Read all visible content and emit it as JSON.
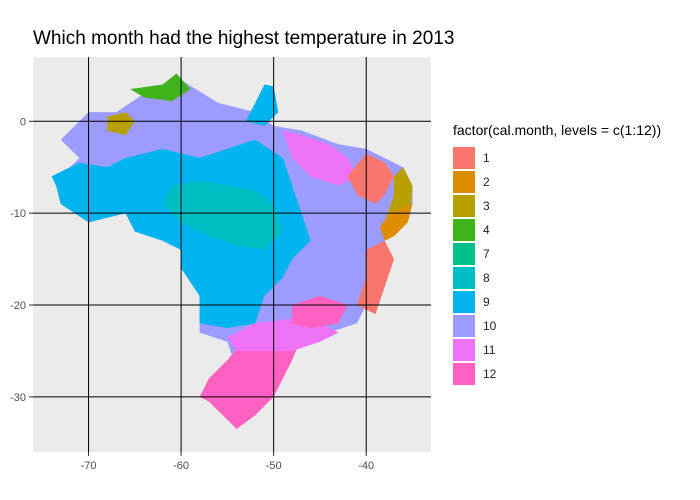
{
  "title": "Which month had the highest temperature in 2013",
  "legend": {
    "title": "factor(cal.month, levels = c(1:12))",
    "items": [
      {
        "label": "1",
        "color": "#F8766D"
      },
      {
        "label": "2",
        "color": "#DE8C00"
      },
      {
        "label": "3",
        "color": "#B79F00"
      },
      {
        "label": "4",
        "color": "#3FB319"
      },
      {
        "label": "7",
        "color": "#00C08B"
      },
      {
        "label": "8",
        "color": "#00BFC4"
      },
      {
        "label": "9",
        "color": "#00B4F0"
      },
      {
        "label": "10",
        "color": "#9C9CFF"
      },
      {
        "label": "11",
        "color": "#EE72F6"
      },
      {
        "label": "12",
        "color": "#FF61C3"
      }
    ]
  },
  "axes": {
    "x": {
      "range": [
        -76,
        -33
      ],
      "ticks": [
        -70,
        -60,
        -50,
        -40
      ],
      "tick_labels": [
        "-70",
        "-60",
        "-50",
        "-40"
      ]
    },
    "y": {
      "range": [
        -36,
        7
      ],
      "ticks": [
        0,
        -10,
        -20,
        -30
      ],
      "tick_labels": [
        "0",
        "-10",
        "-20",
        "-30"
      ]
    }
  },
  "panel_background": "#EBEBEB",
  "grid_color": "#000000",
  "regions": [
    {
      "month": "10",
      "color": "#9C9CFF",
      "points": [
        [
          -73,
          -2
        ],
        [
          -70,
          1
        ],
        [
          -67,
          1
        ],
        [
          -64,
          3
        ],
        [
          -60,
          4.5
        ],
        [
          -56,
          2
        ],
        [
          -52,
          1
        ],
        [
          -50,
          -0.5
        ],
        [
          -47,
          -1
        ],
        [
          -43,
          -2.5
        ],
        [
          -40,
          -3
        ],
        [
          -36,
          -5
        ],
        [
          -35,
          -7
        ],
        [
          -35,
          -9
        ],
        [
          -37,
          -12
        ],
        [
          -39,
          -14
        ],
        [
          -39,
          -17
        ],
        [
          -40,
          -20
        ],
        [
          -41,
          -22
        ],
        [
          -44,
          -23
        ],
        [
          -46,
          -24
        ],
        [
          -49,
          -25
        ],
        [
          -50,
          -28
        ],
        [
          -52,
          -31
        ],
        [
          -54,
          -33
        ],
        [
          -56,
          -31
        ],
        [
          -57,
          -30
        ],
        [
          -57,
          -28
        ],
        [
          -54,
          -27
        ],
        [
          -55,
          -24
        ],
        [
          -58,
          -23
        ],
        [
          -58,
          -19
        ],
        [
          -60,
          -16
        ],
        [
          -60,
          -14
        ],
        [
          -62,
          -13
        ],
        [
          -65,
          -12
        ],
        [
          -66,
          -10
        ],
        [
          -70,
          -11
        ],
        [
          -73,
          -9
        ],
        [
          -73.5,
          -7
        ],
        [
          -72,
          -5
        ],
        [
          -71,
          -4
        ]
      ]
    },
    {
      "month": "9",
      "color": "#00B4F0",
      "points": [
        [
          -74,
          -6
        ],
        [
          -71,
          -4.5
        ],
        [
          -68,
          -5
        ],
        [
          -66,
          -4
        ],
        [
          -62,
          -3
        ],
        [
          -58,
          -4
        ],
        [
          -55,
          -3
        ],
        [
          -52,
          -2
        ],
        [
          -49,
          -4
        ],
        [
          -48,
          -7
        ],
        [
          -47,
          -10
        ],
        [
          -46,
          -13
        ],
        [
          -48,
          -15
        ],
        [
          -49,
          -17
        ],
        [
          -51,
          -19
        ],
        [
          -52,
          -22
        ],
        [
          -55,
          -22.5
        ],
        [
          -58,
          -22
        ],
        [
          -58,
          -19
        ],
        [
          -60,
          -16
        ],
        [
          -60,
          -14
        ],
        [
          -62,
          -13
        ],
        [
          -65,
          -12
        ],
        [
          -66,
          -10
        ],
        [
          -70,
          -11
        ],
        [
          -73,
          -9
        ],
        [
          -73.5,
          -7
        ]
      ]
    },
    {
      "month": "8",
      "color": "#00BFC4",
      "points": [
        [
          -61,
          -7
        ],
        [
          -58,
          -6.5
        ],
        [
          -55,
          -7
        ],
        [
          -52,
          -7.5
        ],
        [
          -50,
          -9
        ],
        [
          -49,
          -12
        ],
        [
          -51,
          -14
        ],
        [
          -54,
          -13.5
        ],
        [
          -57,
          -12.5
        ],
        [
          -60,
          -11
        ],
        [
          -62,
          -9
        ]
      ]
    },
    {
      "month": "11",
      "color": "#EE72F6",
      "points": [
        [
          -49,
          -1
        ],
        [
          -47,
          -1.5
        ],
        [
          -44,
          -2.5
        ],
        [
          -42,
          -4
        ],
        [
          -41,
          -6
        ],
        [
          -43,
          -7
        ],
        [
          -46,
          -6
        ],
        [
          -48,
          -4
        ]
      ]
    },
    {
      "month": "12",
      "color": "#FF61C3",
      "points": [
        [
          -57,
          -28
        ],
        [
          -55,
          -26
        ],
        [
          -53,
          -23.5
        ],
        [
          -50,
          -22.5
        ],
        [
          -47,
          -23.5
        ],
        [
          -48,
          -26
        ],
        [
          -49,
          -28
        ],
        [
          -50,
          -30
        ],
        [
          -52,
          -32
        ],
        [
          -54,
          -33.5
        ],
        [
          -57,
          -30.5
        ],
        [
          -58,
          -30
        ]
      ]
    },
    {
      "month": "11",
      "color": "#EE72F6",
      "points": [
        [
          -55,
          -23.5
        ],
        [
          -52,
          -22
        ],
        [
          -48,
          -21.5
        ],
        [
          -45,
          -22
        ],
        [
          -43,
          -23
        ],
        [
          -45,
          -24
        ],
        [
          -48,
          -25
        ],
        [
          -51,
          -25
        ],
        [
          -54,
          -25
        ]
      ]
    },
    {
      "month": "12",
      "color": "#FF61C3",
      "points": [
        [
          -48,
          -20
        ],
        [
          -45,
          -19
        ],
        [
          -42,
          -20
        ],
        [
          -43,
          -22
        ],
        [
          -46,
          -22.5
        ],
        [
          -48,
          -22
        ]
      ]
    },
    {
      "month": "1",
      "color": "#F8766D",
      "points": [
        [
          -40,
          -3.5
        ],
        [
          -38,
          -4.5
        ],
        [
          -37,
          -6
        ],
        [
          -38,
          -8
        ],
        [
          -39,
          -9
        ],
        [
          -41,
          -8
        ],
        [
          -42,
          -6
        ]
      ]
    },
    {
      "month": "1",
      "color": "#F8766D",
      "points": [
        [
          -38,
          -13
        ],
        [
          -37,
          -15
        ],
        [
          -38,
          -18
        ],
        [
          -39,
          -21
        ],
        [
          -41,
          -20
        ],
        [
          -40,
          -17
        ],
        [
          -40,
          -14
        ]
      ]
    },
    {
      "month": "3",
      "color": "#B79F00",
      "points": [
        [
          -36,
          -5
        ],
        [
          -35,
          -7
        ],
        [
          -35.2,
          -9.5
        ],
        [
          -36,
          -11
        ],
        [
          -37,
          -12.5
        ],
        [
          -38,
          -11
        ],
        [
          -37,
          -8
        ],
        [
          -37,
          -6
        ]
      ]
    },
    {
      "month": "2",
      "color": "#DE8C00",
      "points": [
        [
          -35,
          -9
        ],
        [
          -35.5,
          -11
        ],
        [
          -37,
          -12.5
        ],
        [
          -38,
          -13
        ],
        [
          -38.5,
          -11.5
        ],
        [
          -37.5,
          -10
        ]
      ]
    },
    {
      "month": "4",
      "color": "#3FB319",
      "points": [
        [
          -65.5,
          3.5
        ],
        [
          -62,
          4
        ],
        [
          -60.5,
          5.2
        ],
        [
          -59,
          3.5
        ],
        [
          -61,
          2.2
        ],
        [
          -64,
          2.6
        ]
      ]
    },
    {
      "month": "3",
      "color": "#B79F00",
      "points": [
        [
          -68,
          0.5
        ],
        [
          -66,
          1
        ],
        [
          -65,
          0
        ],
        [
          -66,
          -1.5
        ],
        [
          -68,
          -1
        ]
      ]
    },
    {
      "month": "9",
      "color": "#00B4F0",
      "points": [
        [
          -53,
          0
        ],
        [
          -51,
          4
        ],
        [
          -50,
          3.8
        ],
        [
          -49.5,
          1
        ],
        [
          -51,
          -0.5
        ]
      ]
    }
  ]
}
